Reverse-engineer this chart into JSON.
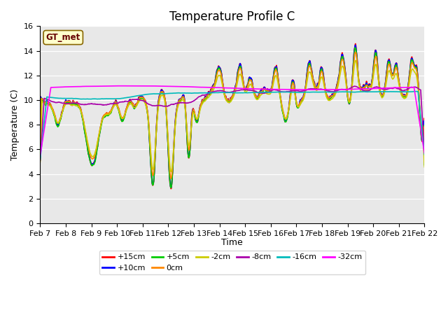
{
  "title": "Temperature Profile C",
  "xlabel": "Time",
  "ylabel": "Temperature (C)",
  "ylim": [
    0,
    16
  ],
  "yticks": [
    0,
    2,
    4,
    6,
    8,
    10,
    12,
    14,
    16
  ],
  "date_labels": [
    "Feb 7",
    "Feb 8",
    "Feb 9",
    "Feb 10",
    "Feb 11",
    "Feb 12",
    "Feb 13",
    "Feb 14",
    "Feb 15",
    "Feb 16",
    "Feb 17",
    "Feb 18",
    "Feb 19",
    "Feb 20",
    "Feb 21",
    "Feb 22"
  ],
  "series": [
    {
      "label": "+15cm",
      "color": "#ff0000"
    },
    {
      "label": "+10cm",
      "color": "#0000ff"
    },
    {
      "label": "+5cm",
      "color": "#00cc00"
    },
    {
      "label": "0cm",
      "color": "#ff8800"
    },
    {
      "label": "-2cm",
      "color": "#cccc00"
    },
    {
      "label": "-8cm",
      "color": "#aa00aa"
    },
    {
      "label": "-16cm",
      "color": "#00bbbb"
    },
    {
      "label": "-32cm",
      "color": "#ff00ff"
    }
  ],
  "background_color": "#e8e8e8",
  "title_fontsize": 12,
  "axis_label_fontsize": 9,
  "tick_fontsize": 8
}
